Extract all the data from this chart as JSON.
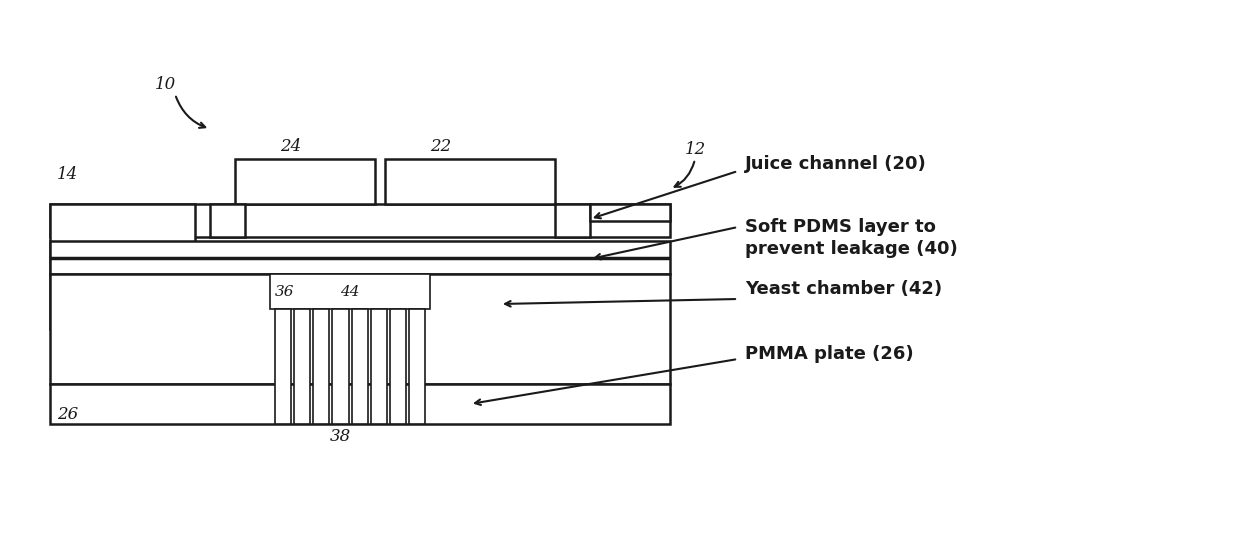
{
  "bg_color": "#ffffff",
  "lc": "#1a1a1a",
  "lw": 1.8,
  "lw_thin": 1.2,
  "fig_width": 12.4,
  "fig_height": 5.59,
  "dpi": 100,
  "label_10": "10",
  "label_12": "12",
  "label_14": "14",
  "label_22": "22",
  "label_24": "24",
  "label_26_bot": "26",
  "label_36": "36",
  "label_38": "38",
  "label_44": "44",
  "ann_juice": "Juice channel (20)",
  "ann_pdms_1": "Soft PDMS layer to",
  "ann_pdms_2": "prevent leakage (40)",
  "ann_yeast": "Yeast chamber (42)",
  "ann_pmma": "PMMA plate (26)",
  "fontsize_label": 12,
  "fontsize_ann": 13
}
